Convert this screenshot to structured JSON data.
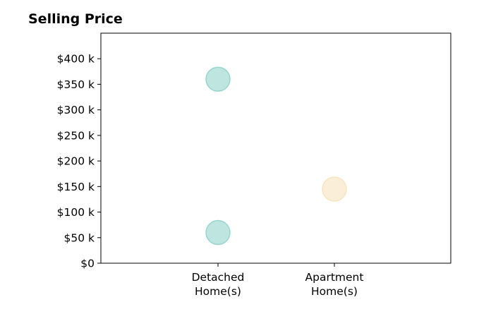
{
  "chart_data": {
    "type": "scatter",
    "title": "Selling Price",
    "xlabel": "",
    "ylabel": "",
    "categories": [
      [
        "Detached",
        "Home(s)"
      ],
      [
        "Apartment",
        "Home(s)"
      ]
    ],
    "ylim": [
      0,
      450000
    ],
    "yticks": [
      0,
      50000,
      100000,
      150000,
      200000,
      250000,
      300000,
      350000,
      400000
    ],
    "ytick_labels": [
      "$0",
      "$50 k",
      "$100 k",
      "$150 k",
      "$200 k",
      "$250 k",
      "$300 k",
      "$350 k",
      "$400 k"
    ],
    "grid": false,
    "legend": "none",
    "series": [
      {
        "category_index": 0,
        "color": "#80cbc4",
        "points": [
          360000,
          60000
        ]
      },
      {
        "category_index": 1,
        "color": "#f5deb3",
        "points": [
          145000
        ]
      }
    ]
  }
}
